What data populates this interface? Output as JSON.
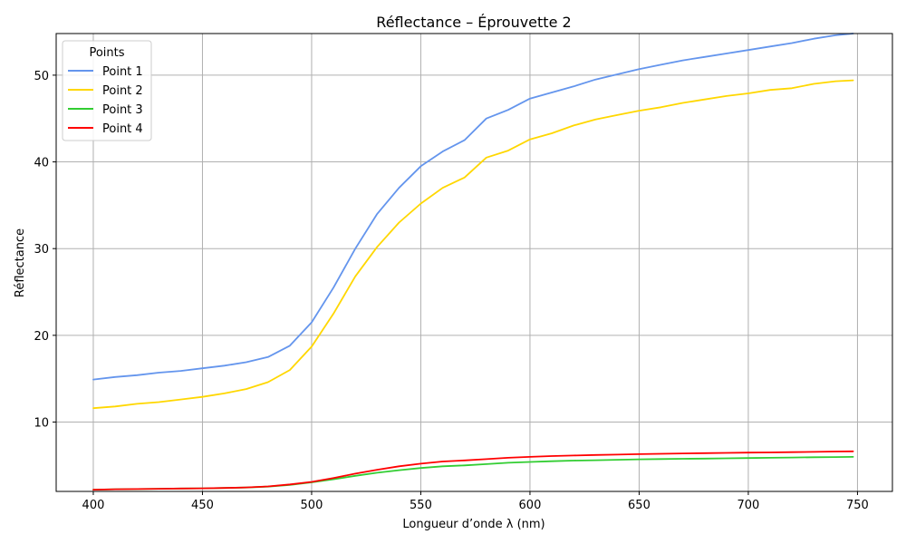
{
  "chart_data": {
    "type": "line",
    "title": "Réflectance – Éprouvette 2",
    "xlabel": "Longueur d’onde λ (nm)",
    "ylabel": "Réflectance",
    "xlim": [
      383,
      766
    ],
    "ylim": [
      2.0,
      54.8
    ],
    "xticks": [
      400,
      450,
      500,
      550,
      600,
      650,
      700,
      750
    ],
    "yticks": [
      10,
      20,
      30,
      40,
      50
    ],
    "grid": true,
    "legend": {
      "title": "Points",
      "placement": "top-left"
    },
    "x": [
      400,
      410,
      420,
      430,
      440,
      450,
      460,
      470,
      480,
      490,
      500,
      510,
      520,
      530,
      540,
      550,
      560,
      570,
      580,
      590,
      600,
      610,
      620,
      630,
      640,
      650,
      660,
      670,
      680,
      690,
      700,
      710,
      720,
      730,
      740,
      748
    ],
    "series": [
      {
        "name": "Point 1",
        "color": "#6495ED",
        "values": [
          14.9,
          15.2,
          15.4,
          15.7,
          15.9,
          16.2,
          16.5,
          16.9,
          17.5,
          18.8,
          21.5,
          25.5,
          30.0,
          34.0,
          37.0,
          39.5,
          41.2,
          42.5,
          45.0,
          46.0,
          47.3,
          48.0,
          48.7,
          49.5,
          50.1,
          50.7,
          51.2,
          51.7,
          52.1,
          52.5,
          52.9,
          53.3,
          53.7,
          54.2,
          54.6,
          54.8
        ]
      },
      {
        "name": "Point 2",
        "color": "#FFD700",
        "values": [
          11.6,
          11.8,
          12.1,
          12.3,
          12.6,
          12.9,
          13.3,
          13.8,
          14.6,
          16.0,
          18.7,
          22.5,
          26.8,
          30.2,
          33.0,
          35.2,
          37.0,
          38.2,
          40.5,
          41.3,
          42.6,
          43.3,
          44.2,
          44.9,
          45.4,
          45.9,
          46.3,
          46.8,
          47.2,
          47.6,
          47.9,
          48.3,
          48.5,
          49.0,
          49.3,
          49.4
        ]
      },
      {
        "name": "Point 3",
        "color": "#32CD32",
        "values": [
          2.2,
          2.25,
          2.27,
          2.3,
          2.33,
          2.36,
          2.4,
          2.45,
          2.55,
          2.75,
          3.05,
          3.4,
          3.8,
          4.15,
          4.45,
          4.7,
          4.9,
          5.0,
          5.15,
          5.3,
          5.4,
          5.48,
          5.55,
          5.6,
          5.65,
          5.7,
          5.73,
          5.76,
          5.79,
          5.82,
          5.85,
          5.88,
          5.91,
          5.94,
          5.96,
          5.98
        ]
      },
      {
        "name": "Point 4",
        "color": "#FF0000",
        "values": [
          2.2,
          2.25,
          2.27,
          2.3,
          2.33,
          2.36,
          2.4,
          2.46,
          2.58,
          2.8,
          3.1,
          3.55,
          4.05,
          4.5,
          4.9,
          5.2,
          5.45,
          5.58,
          5.72,
          5.88,
          5.98,
          6.08,
          6.14,
          6.2,
          6.25,
          6.3,
          6.34,
          6.38,
          6.41,
          6.44,
          6.47,
          6.5,
          6.53,
          6.56,
          6.6,
          6.62
        ]
      }
    ]
  }
}
